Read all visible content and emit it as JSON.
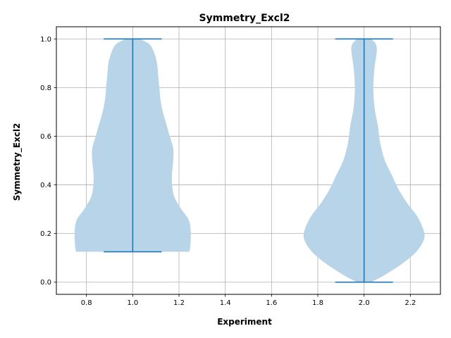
{
  "chart_data": {
    "type": "violin",
    "title": "Symmetry_Excl2",
    "xlabel": "Experiment",
    "ylabel": "Symmetry_Excl2",
    "xlim": [
      0.67,
      2.33
    ],
    "ylim": [
      -0.05,
      1.05
    ],
    "xticks": [
      0.8,
      1.0,
      1.2,
      1.4,
      1.6,
      1.8,
      2.0,
      2.2
    ],
    "xtick_labels": [
      "0.8",
      "1.0",
      "1.2",
      "1.4",
      "1.6",
      "1.8",
      "2.0",
      "2.2"
    ],
    "yticks": [
      0.0,
      0.2,
      0.4,
      0.6,
      0.8,
      1.0
    ],
    "ytick_labels": [
      "0.0",
      "0.2",
      "0.4",
      "0.6",
      "0.8",
      "1.0"
    ],
    "grid": true,
    "colors": {
      "body": "#b8d4e8",
      "lines": "#1f77b4"
    },
    "violins": [
      {
        "position": 1.0,
        "min": 0.125,
        "max": 1.0,
        "cap_halfwidth": 0.125,
        "profile": [
          [
            0.125,
            0.245
          ],
          [
            0.16,
            0.25
          ],
          [
            0.22,
            0.25
          ],
          [
            0.26,
            0.24
          ],
          [
            0.3,
            0.21
          ],
          [
            0.35,
            0.18
          ],
          [
            0.4,
            0.17
          ],
          [
            0.45,
            0.17
          ],
          [
            0.5,
            0.175
          ],
          [
            0.55,
            0.175
          ],
          [
            0.6,
            0.16
          ],
          [
            0.65,
            0.145
          ],
          [
            0.7,
            0.13
          ],
          [
            0.75,
            0.12
          ],
          [
            0.8,
            0.115
          ],
          [
            0.85,
            0.11
          ],
          [
            0.9,
            0.105
          ],
          [
            0.95,
            0.09
          ],
          [
            0.98,
            0.07
          ],
          [
            1.0,
            0.03
          ]
        ]
      },
      {
        "position": 2.0,
        "min": 0.0,
        "max": 1.0,
        "cap_halfwidth": 0.125,
        "profile": [
          [
            0.0,
            0.03
          ],
          [
            0.03,
            0.09
          ],
          [
            0.08,
            0.17
          ],
          [
            0.13,
            0.23
          ],
          [
            0.18,
            0.26
          ],
          [
            0.22,
            0.255
          ],
          [
            0.27,
            0.23
          ],
          [
            0.32,
            0.19
          ],
          [
            0.38,
            0.15
          ],
          [
            0.44,
            0.12
          ],
          [
            0.5,
            0.09
          ],
          [
            0.57,
            0.07
          ],
          [
            0.64,
            0.06
          ],
          [
            0.72,
            0.045
          ],
          [
            0.8,
            0.04
          ],
          [
            0.88,
            0.045
          ],
          [
            0.95,
            0.055
          ],
          [
            0.98,
            0.05
          ],
          [
            1.0,
            0.03
          ]
        ]
      }
    ]
  }
}
